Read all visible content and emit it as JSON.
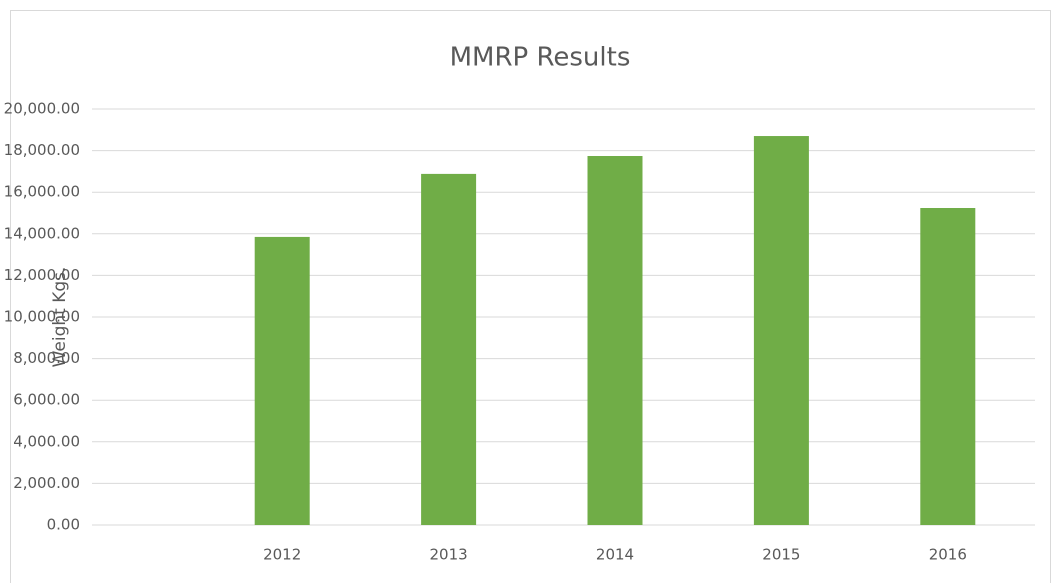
{
  "chart_data": {
    "type": "bar",
    "title": "MMRP Results",
    "y_label": "Weight Kgs.",
    "categories": [
      "2012",
      "2013",
      "2014",
      "2015",
      "2016"
    ],
    "values": [
      13850,
      16880,
      17740,
      18700,
      15240
    ],
    "color": "#70ad47",
    "ylim": [
      0,
      20000
    ],
    "yticks": [
      {
        "value": 0,
        "label": "0.00"
      },
      {
        "value": 2000,
        "label": "2,000.00"
      },
      {
        "value": 4000,
        "label": "4,000.00"
      },
      {
        "value": 6000,
        "label": "6,000.00"
      },
      {
        "value": 8000,
        "label": "8,000.00"
      },
      {
        "value": 10000,
        "label": "10,000.00"
      },
      {
        "value": 12000,
        "label": "12,000.00"
      },
      {
        "value": 14000,
        "label": "14,000.00"
      },
      {
        "value": 16000,
        "label": "16,000.00"
      },
      {
        "value": 18000,
        "label": "18,000.00"
      },
      {
        "value": 20000,
        "label": "20,000.00"
      }
    ],
    "grid": true
  }
}
